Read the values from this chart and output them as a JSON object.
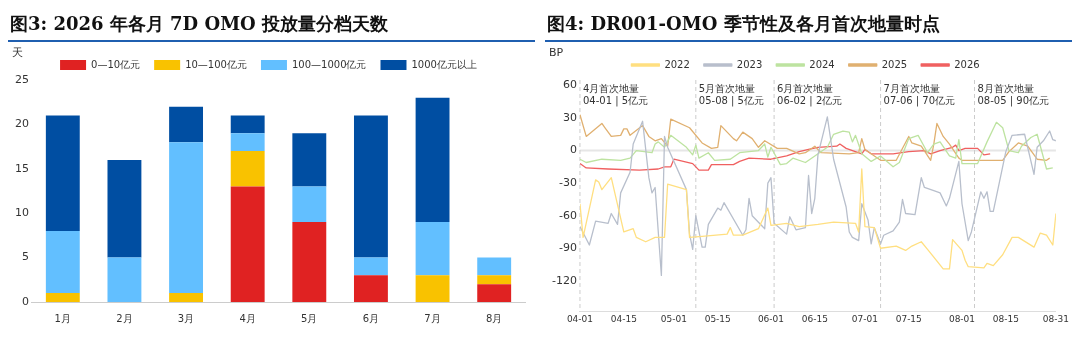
{
  "chart_data": [
    {
      "type": "bar",
      "title": "图3: 2026 年各月 7D OMO 投放量分档天数",
      "ylabel": "天",
      "categories": [
        "1月",
        "2月",
        "3月",
        "4月",
        "5月",
        "6月",
        "7月",
        "8月"
      ],
      "stacked": true,
      "legend": "top",
      "ylim": [
        0,
        25
      ],
      "yticks": [
        0,
        5,
        10,
        15,
        20,
        25
      ],
      "series": [
        {
          "name": "0—10亿元",
          "color": "#e02222",
          "values": [
            0,
            0,
            0,
            13,
            9,
            3,
            0,
            2
          ]
        },
        {
          "name": "10—100亿元",
          "color": "#f9c200",
          "values": [
            1,
            0,
            1,
            4,
            0,
            0,
            3,
            1
          ]
        },
        {
          "name": "100—1000亿元",
          "color": "#62bfff",
          "values": [
            7,
            5,
            17,
            2,
            4,
            2,
            6,
            2
          ]
        },
        {
          "name": "1000亿元以上",
          "color": "#004ea2",
          "values": [
            13,
            11,
            4,
            2,
            6,
            16,
            14,
            0
          ]
        }
      ]
    },
    {
      "type": "line",
      "title": "图4: DR001-OMO 季节性及各月首次地量时点",
      "ylabel": "BP",
      "legend": "top",
      "marker": "none",
      "line_style": "solid",
      "xlim": [
        "--04-01",
        "--08-31"
      ],
      "xticks": [
        {
          "value": "--04-01",
          "label": "04-01"
        },
        {
          "value": "--04-15",
          "label": "04-15"
        },
        {
          "value": "--05-01",
          "label": "05-01"
        },
        {
          "value": "--05-15",
          "label": "05-15"
        },
        {
          "value": "--06-01",
          "label": "06-01"
        },
        {
          "value": "--06-15",
          "label": "06-15"
        },
        {
          "value": "--07-01",
          "label": "07-01"
        },
        {
          "value": "--07-15",
          "label": "07-15"
        },
        {
          "value": "--08-01",
          "label": "08-01"
        },
        {
          "value": "--08-15",
          "label": "08-15"
        },
        {
          "value": "--08-31",
          "label": "08-31"
        }
      ],
      "ylim": [
        -148,
        65
      ],
      "yticks": [
        -120,
        -90,
        -60,
        -30,
        0,
        30,
        60
      ],
      "ref_lines": [
        {
          "axis": "y",
          "value": 0,
          "color": "#e6e6e6",
          "line_style": "solid"
        },
        {
          "axis": "x",
          "value": "--04-01",
          "label": "4月首次地量\n04-01 | 5亿元",
          "color": "#cccccc",
          "line_style": "dashed"
        },
        {
          "axis": "x",
          "value": "--05-08",
          "label": "5月首次地量\n05-08 | 5亿元",
          "color": "#cccccc",
          "line_style": "dashed"
        },
        {
          "axis": "x",
          "value": "--06-02",
          "label": "6月首次地量\n06-02 | 2亿元",
          "color": "#cccccc",
          "line_style": "dashed"
        },
        {
          "axis": "x",
          "value": "--07-06",
          "label": "7月首次地量\n07-06 | 70亿元",
          "color": "#cccccc",
          "line_style": "dashed"
        },
        {
          "axis": "x",
          "value": "--08-05",
          "label": "8月首次地量\n08-05 | 90亿元",
          "color": "#cccccc",
          "line_style": "dashed"
        }
      ],
      "series": [
        {
          "name": "2022",
          "color": "#ffdf80",
          "x": [
            "--04-01",
            "--04-02",
            "--04-06",
            "--04-07",
            "--04-08",
            "--04-11",
            "--04-15",
            "--04-18",
            "--04-19",
            "--04-22",
            "--04-25",
            "--04-28",
            "--04-29",
            "--05-05",
            "--05-06",
            "--05-10",
            "--05-18",
            "--05-19",
            "--05-20",
            "--05-23",
            "--05-28",
            "--05-31",
            "--06-01",
            "--06-06",
            "--06-10",
            "--06-16",
            "--06-21",
            "--06-28",
            "--06-29",
            "--06-30",
            "--07-01",
            "--07-04",
            "--07-06",
            "--07-11",
            "--07-14",
            "--07-16",
            "--07-19",
            "--07-21",
            "--07-26",
            "--07-28",
            "--07-29",
            "--08-01",
            "--08-02",
            "--08-03",
            "--08-08",
            "--08-09",
            "--08-11",
            "--08-14",
            "--08-17",
            "--08-19",
            "--08-24",
            "--08-26",
            "--08-28",
            "--08-30",
            "--08-31"
          ],
          "values": [
            -49,
            -80,
            -27,
            -29,
            -36,
            -25,
            -75,
            -72,
            -80,
            -84,
            -80,
            -80,
            -31,
            -36,
            -80,
            -79,
            -77,
            -71,
            -78,
            -78,
            -72,
            -53,
            -69,
            -67,
            -70,
            -68,
            -66,
            -67,
            -75,
            -17,
            -70,
            -71,
            -90,
            -88,
            -92,
            -88,
            -84,
            -91,
            -109,
            -109,
            -82,
            -92,
            -101,
            -107,
            -108,
            -104,
            -106,
            -96,
            -80,
            -80,
            -89,
            -76,
            -78,
            -87,
            -58
          ]
        },
        {
          "name": "2023",
          "color": "#b8bfcc",
          "x": [
            "--04-01",
            "--04-04",
            "--04-06",
            "--04-10",
            "--04-11",
            "--04-13",
            "--04-14",
            "--04-17",
            "--04-18",
            "--04-21",
            "--04-23",
            "--04-24",
            "--04-25",
            "--04-27",
            "--04-28",
            "--04-29",
            "--05-05",
            "--05-06",
            "--05-07",
            "--05-08",
            "--05-10",
            "--05-11",
            "--05-12",
            "--05-15",
            "--05-16",
            "--05-17",
            "--05-23",
            "--05-24",
            "--05-25",
            "--05-26",
            "--05-30",
            "--05-31",
            "--06-01",
            "--06-02",
            "--06-06",
            "--06-07",
            "--06-09",
            "--06-12",
            "--06-13",
            "--06-14",
            "--06-15",
            "--06-16",
            "--06-19",
            "--06-21",
            "--06-25",
            "--06-26",
            "--06-27",
            "--06-29",
            "--06-30",
            "--07-02",
            "--07-03",
            "--07-04",
            "--07-06",
            "--07-07",
            "--07-10",
            "--07-12",
            "--07-13",
            "--07-14",
            "--07-17",
            "--07-19",
            "--07-20",
            "--07-23",
            "--07-25",
            "--07-27",
            "--07-28",
            "--07-31",
            "--08-01",
            "--08-03",
            "--08-04",
            "--08-07",
            "--08-08",
            "--08-09",
            "--08-10",
            "--08-11",
            "--08-15",
            "--08-17",
            "--08-21",
            "--08-24",
            "--08-25",
            "--08-27",
            "--08-29",
            "--08-30",
            "--08-31"
          ],
          "values": [
            -70,
            -87,
            -65,
            -67,
            -58,
            -68,
            -39,
            -20,
            6,
            27,
            -25,
            -39,
            -34,
            -115,
            13,
            3,
            -36,
            -77,
            -91,
            -60,
            -89,
            -89,
            -68,
            -53,
            -55,
            -48,
            -78,
            -73,
            -44,
            -60,
            -72,
            -30,
            -25,
            -67,
            -77,
            -61,
            -73,
            -71,
            -23,
            -58,
            -44,
            -4,
            31,
            -8,
            -52,
            -75,
            -80,
            -83,
            -49,
            -64,
            -86,
            -71,
            -86,
            -78,
            -74,
            -66,
            -45,
            -58,
            -59,
            -25,
            -34,
            -37,
            -39,
            -51,
            -44,
            -10,
            -49,
            -83,
            -75,
            -38,
            -44,
            -38,
            -56,
            -56,
            -1,
            14,
            15,
            -22,
            3,
            9,
            18,
            10,
            9
          ]
        },
        {
          "name": "2024",
          "color": "#bde3a0",
          "x": [
            "--04-01",
            "--04-03",
            "--04-08",
            "--04-14",
            "--04-17",
            "--04-19",
            "--04-24",
            "--04-25",
            "--04-26",
            "--04-28",
            "--04-30",
            "--05-05",
            "--05-07",
            "--05-08",
            "--05-09",
            "--05-12",
            "--05-14",
            "--05-19",
            "--05-22",
            "--05-28",
            "--05-30",
            "--05-31",
            "--06-01",
            "--06-04",
            "--06-06",
            "--06-08",
            "--06-12",
            "--06-15",
            "--06-19",
            "--06-21",
            "--06-24",
            "--06-26",
            "--06-27",
            "--06-28",
            "--06-30",
            "--07-03",
            "--07-06",
            "--07-10",
            "--07-12",
            "--07-15",
            "--07-18",
            "--07-21",
            "--07-23",
            "--07-25",
            "--07-28",
            "--07-30",
            "--07-31",
            "--08-01",
            "--08-06",
            "--08-09",
            "--08-12",
            "--08-14",
            "--08-16",
            "--08-19",
            "--08-20",
            "--08-23",
            "--08-25",
            "--08-28",
            "--08-30"
          ],
          "values": [
            -8,
            -11,
            -8,
            -9,
            -7,
            0,
            -2,
            6,
            8,
            3,
            14,
            3,
            -4,
            5,
            -7,
            -2,
            -9,
            -8,
            -2,
            0,
            6,
            -6,
            3,
            -13,
            -12,
            -7,
            -11,
            -5,
            3,
            15,
            18,
            17,
            8,
            14,
            -3,
            -10,
            -5,
            -15,
            -11,
            11,
            14,
            -2,
            6,
            8,
            -5,
            -7,
            10,
            -12,
            -12,
            8,
            26,
            21,
            0,
            -2,
            4,
            12,
            15,
            -17,
            -16
          ]
        },
        {
          "name": "2025",
          "color": "#e0b070",
          "x": [
            "--04-01",
            "--04-03",
            "--04-08",
            "--04-09",
            "--04-11",
            "--04-14",
            "--04-15",
            "--04-16",
            "--04-17",
            "--04-21",
            "--04-23",
            "--04-25",
            "--04-27",
            "--04-29",
            "--04-30",
            "--05-06",
            "--05-10",
            "--05-13",
            "--05-15",
            "--05-16",
            "--05-20",
            "--05-21",
            "--05-23",
            "--05-26",
            "--05-28",
            "--05-30",
            "--06-03",
            "--06-06",
            "--06-10",
            "--06-12",
            "--06-15",
            "--06-17",
            "--06-26",
            "--06-29",
            "--06-30",
            "--07-01",
            "--07-06",
            "--07-11",
            "--07-15",
            "--07-16",
            "--07-19",
            "--07-22",
            "--07-23",
            "--07-24",
            "--07-26",
            "--07-28",
            "--07-31",
            "--08-01",
            "--08-14",
            "--08-16",
            "--08-19",
            "--08-22",
            "--08-25",
            "--08-28",
            "--08-29"
          ],
          "values": [
            33,
            13,
            25,
            21,
            13,
            14,
            20,
            20,
            14,
            23,
            13,
            9,
            11,
            4,
            29,
            21,
            7,
            2,
            3,
            23,
            11,
            9,
            17,
            11,
            3,
            9,
            2,
            2,
            -3,
            -2,
            4,
            -2,
            -3,
            -2,
            11,
            1,
            -9,
            -9,
            13,
            7,
            4,
            -9,
            6,
            25,
            13,
            6,
            -7,
            -9,
            -9,
            -1,
            7,
            4,
            -8,
            -9,
            -7
          ]
        },
        {
          "name": "2026",
          "color": "#f06060",
          "x": [
            "--04-01",
            "--04-03",
            "--04-10",
            "--04-20",
            "--04-26",
            "--04-28",
            "--04-30",
            "--05-01",
            "--05-07",
            "--05-09",
            "--05-12",
            "--05-13",
            "--05-20",
            "--05-22",
            "--05-25",
            "--06-01",
            "--06-06",
            "--06-10",
            "--06-13",
            "--06-16",
            "--06-22",
            "--06-23",
            "--06-25",
            "--06-30",
            "--07-01",
            "--07-03",
            "--07-10",
            "--07-15",
            "--07-20",
            "--07-22",
            "--07-25",
            "--07-29",
            "--07-30",
            "--07-31",
            "--08-02",
            "--08-06",
            "--08-08",
            "--08-10"
          ],
          "values": [
            -12,
            -16,
            -17,
            -18,
            -17,
            -15,
            -15,
            -8,
            -12,
            -18,
            -18,
            -13,
            -13,
            -10,
            -7,
            -8,
            -5,
            -1,
            1,
            3,
            4,
            6,
            2,
            -3,
            1,
            -3,
            -3,
            -1,
            0,
            -3,
            0,
            3,
            5,
            0,
            2,
            2,
            -4,
            -3
          ]
        }
      ]
    }
  ]
}
